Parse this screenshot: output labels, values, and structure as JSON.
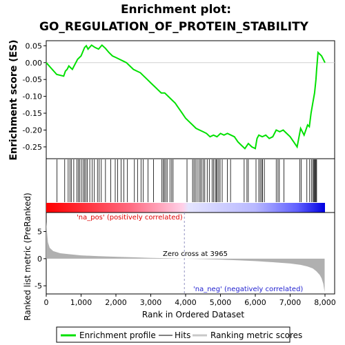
{
  "chart_data": {
    "type": "line",
    "title_line1": "Enrichment plot:",
    "title_line2": "GO_REGULATION_OF_PROTEIN_STABILITY",
    "es_ylabel": "Enrichment score (ES)",
    "metric_ylabel": "Ranked list metric (PreRanked)",
    "xlabel": "Rank in Ordered Dataset",
    "xlim": [
      0,
      8200
    ],
    "es_ylim": [
      -0.285,
      0.065
    ],
    "metric_ylim": [
      -6.5,
      8.5
    ],
    "x_ticks": [
      "0",
      "1,000",
      "2,000",
      "3,000",
      "4,000",
      "5,000",
      "6,000",
      "7,000",
      "8,000"
    ],
    "x_tick_values": [
      0,
      1000,
      2000,
      3000,
      4000,
      5000,
      6000,
      7000,
      8000
    ],
    "es_ticks": [
      "0.05",
      "0.00",
      "-0.05",
      "-0.10",
      "-0.15",
      "-0.20",
      "-0.25"
    ],
    "es_tick_values": [
      0.05,
      0.0,
      -0.05,
      -0.1,
      -0.15,
      -0.2,
      -0.25
    ],
    "metric_ticks": [
      "5",
      "0",
      "-5"
    ],
    "metric_tick_values": [
      5,
      0,
      -5
    ],
    "zero_cross_label": "Zero cross at 3965",
    "zero_cross_x": 3965,
    "pos_label": "'na_pos' (positively correlated)",
    "neg_label": "'na_neg' (negatively correlated)",
    "enrichment_profile": {
      "x": [
        0,
        300,
        500,
        550,
        600,
        650,
        700,
        750,
        800,
        900,
        1000,
        1100,
        1150,
        1200,
        1300,
        1400,
        1500,
        1600,
        1700,
        1800,
        1900,
        2000,
        2100,
        2200,
        2300,
        2400,
        2500,
        2600,
        2700,
        2800,
        2900,
        3000,
        3100,
        3200,
        3300,
        3400,
        3500,
        3600,
        3700,
        3800,
        3900,
        4000,
        4100,
        4200,
        4300,
        4400,
        4500,
        4600,
        4700,
        4800,
        4900,
        5000,
        5100,
        5200,
        5300,
        5400,
        5500,
        5600,
        5700,
        5800,
        5900,
        6000,
        6050,
        6100,
        6200,
        6300,
        6400,
        6500,
        6600,
        6700,
        6800,
        6900,
        7000,
        7100,
        7200,
        7300,
        7350,
        7400,
        7500,
        7550,
        7600,
        7650,
        7700,
        7720,
        7740,
        7760,
        7800,
        7900,
        8000
      ],
      "y": [
        0.0,
        -0.035,
        -0.04,
        -0.025,
        -0.02,
        -0.01,
        -0.015,
        -0.02,
        -0.01,
        0.01,
        0.02,
        0.045,
        0.05,
        0.04,
        0.052,
        0.045,
        0.04,
        0.052,
        0.042,
        0.03,
        0.02,
        0.015,
        0.01,
        0.005,
        0.0,
        -0.01,
        -0.02,
        -0.025,
        -0.03,
        -0.04,
        -0.05,
        -0.06,
        -0.07,
        -0.08,
        -0.09,
        -0.09,
        -0.1,
        -0.11,
        -0.12,
        -0.135,
        -0.15,
        -0.165,
        -0.175,
        -0.185,
        -0.195,
        -0.2,
        -0.205,
        -0.21,
        -0.22,
        -0.215,
        -0.22,
        -0.21,
        -0.215,
        -0.21,
        -0.215,
        -0.22,
        -0.235,
        -0.245,
        -0.255,
        -0.24,
        -0.25,
        -0.255,
        -0.225,
        -0.215,
        -0.22,
        -0.215,
        -0.225,
        -0.22,
        -0.2,
        -0.205,
        -0.2,
        -0.21,
        -0.22,
        -0.235,
        -0.25,
        -0.195,
        -0.205,
        -0.215,
        -0.185,
        -0.19,
        -0.15,
        -0.12,
        -0.09,
        -0.07,
        -0.05,
        -0.02,
        0.03,
        0.02,
        0.0
      ]
    },
    "hits": [
      310,
      530,
      630,
      680,
      720,
      790,
      880,
      920,
      960,
      1010,
      1060,
      1100,
      1140,
      1180,
      1250,
      1320,
      1380,
      1470,
      1520,
      1580,
      1700,
      1850,
      1980,
      2050,
      2150,
      2230,
      2330,
      2530,
      2620,
      2720,
      2780,
      2920,
      3080,
      3320,
      3360,
      3390,
      3430,
      3470,
      3550,
      3600,
      3640,
      4040,
      4200,
      4240,
      4280,
      4330,
      4380,
      4420,
      4460,
      4510,
      4550,
      4620,
      4680,
      4760,
      4800,
      4850,
      4880,
      4910,
      4950,
      4990,
      5050,
      5200,
      5290,
      5680,
      5760,
      5800,
      6020,
      6100,
      6140,
      6180,
      6210,
      6260,
      6600,
      6650,
      6690,
      6820,
      7280,
      7320,
      7480,
      7560,
      7610,
      7650,
      7680,
      7700,
      7720,
      7740,
      7760
    ],
    "metric": {
      "x": [
        0,
        20,
        50,
        100,
        200,
        400,
        700,
        1000,
        1500,
        2000,
        2500,
        3000,
        3500,
        3965,
        4500,
        5000,
        5500,
        6000,
        6500,
        7000,
        7300,
        7500,
        7650,
        7750,
        7850,
        7900,
        7950,
        7990
      ],
      "y": [
        6.8,
        5.0,
        3.0,
        2.0,
        1.4,
        1.0,
        0.8,
        0.6,
        0.45,
        0.35,
        0.25,
        0.15,
        0.07,
        0.0,
        -0.08,
        -0.18,
        -0.3,
        -0.45,
        -0.65,
        -0.9,
        -1.15,
        -1.45,
        -1.8,
        -2.3,
        -3.0,
        -3.6,
        -4.6,
        -6.2
      ]
    }
  },
  "legend": {
    "enrichment_profile": "Enrichment profile",
    "hits": "Hits",
    "ranking_metric": "Ranking metric scores"
  },
  "colors": {
    "profile": "#00e000",
    "hits": "#000000",
    "metric": "#b0b0b0",
    "pos": "#e00000",
    "neg": "#2020d0"
  }
}
